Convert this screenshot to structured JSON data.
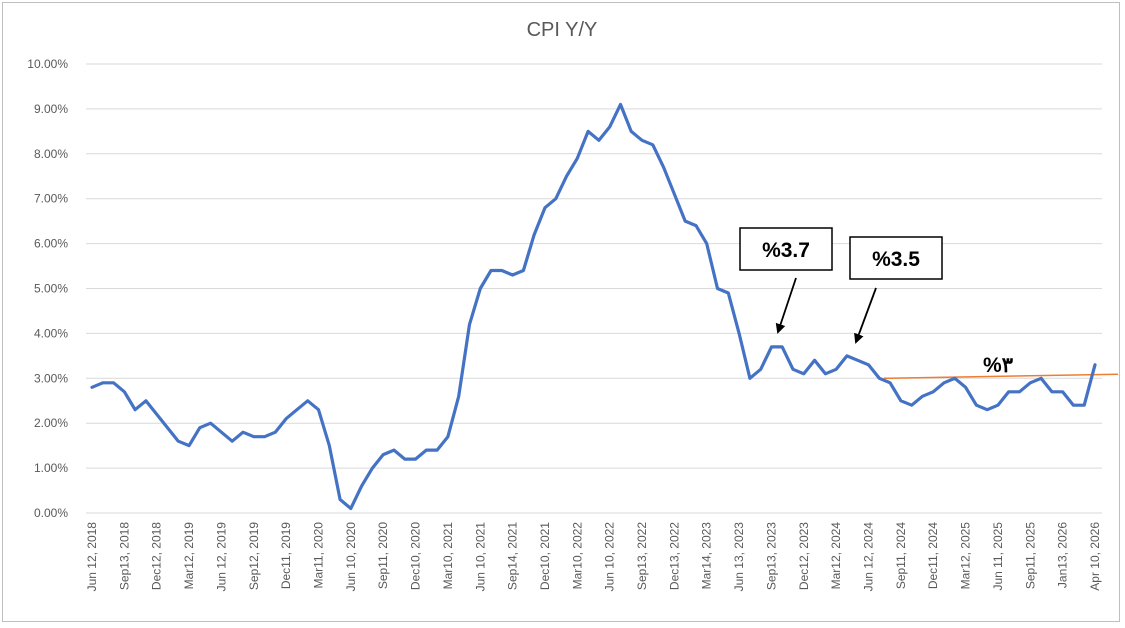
{
  "chart_data": {
    "type": "line",
    "title": "CPI Y/Y",
    "xlabel": "",
    "ylabel": "",
    "ylim": [
      0,
      0.1
    ],
    "grid": true,
    "yticks": [
      "0.00%",
      "1.00%",
      "2.00%",
      "3.00%",
      "4.00%",
      "5.00%",
      "6.00%",
      "7.00%",
      "8.00%",
      "9.00%",
      "10.00%"
    ],
    "xticks": [
      "Jun 12, 2018",
      "Sep13, 2018",
      "Dec12, 2018",
      "Mar12, 2019",
      "Jun 12, 2019",
      "Sep12, 2019",
      "Dec11, 2019",
      "Mar11, 2020",
      "Jun 10, 2020",
      "Sep11, 2020",
      "Dec10, 2020",
      "Mar10, 2021",
      "Jun 10, 2021",
      "Sep14, 2021",
      "Dec10, 2021",
      "Mar10, 2022",
      "Jun 10, 2022",
      "Sep13, 2022",
      "Dec13, 2022",
      "Mar14, 2023",
      "Jun 13, 2023",
      "Sep13, 2023",
      "Dec12, 2023",
      "Mar12, 2024",
      "Jun 12, 2024",
      "Sep11, 2024",
      "Dec11, 2024",
      "Mar12, 2025",
      "Jun 11, 2025",
      "Sep11, 2025",
      "Jan13, 2026",
      "Apr 10, 2026"
    ],
    "series": [
      {
        "name": "",
        "color": "#4472c4",
        "values": [
          0.028,
          0.029,
          0.029,
          0.027,
          0.023,
          0.025,
          0.022,
          0.019,
          0.016,
          0.015,
          0.019,
          0.02,
          0.018,
          0.016,
          0.018,
          0.017,
          0.017,
          0.018,
          0.021,
          0.023,
          0.025,
          0.023,
          0.015,
          0.003,
          0.001,
          0.006,
          0.01,
          0.013,
          0.014,
          0.012,
          0.012,
          0.014,
          0.014,
          0.017,
          0.026,
          0.042,
          0.05,
          0.054,
          0.054,
          0.053,
          0.054,
          0.062,
          0.068,
          0.07,
          0.075,
          0.079,
          0.085,
          0.083,
          0.086,
          0.091,
          0.085,
          0.083,
          0.082,
          0.077,
          0.071,
          0.065,
          0.064,
          0.06,
          0.05,
          0.049,
          0.04,
          0.03,
          0.032,
          0.037,
          0.037,
          0.032,
          0.031,
          0.034,
          0.031,
          0.032,
          0.035,
          0.034,
          0.033,
          0.03,
          0.029,
          0.025,
          0.024,
          0.026,
          0.027,
          0.029,
          0.03,
          0.028,
          0.024,
          0.023,
          0.024,
          0.027,
          0.027,
          0.029,
          0.03,
          0.027,
          0.027,
          0.024,
          0.024,
          0.033
        ]
      }
    ],
    "annotations": [
      {
        "text": "%3.7",
        "arrow_to_index": 63,
        "color": "#000000"
      },
      {
        "text": "%3.5",
        "arrow_to_index": 70,
        "color": "#000000"
      },
      {
        "text": "%۳",
        "target_line_value": 0.03,
        "line_color": "#ed7d31"
      }
    ]
  }
}
